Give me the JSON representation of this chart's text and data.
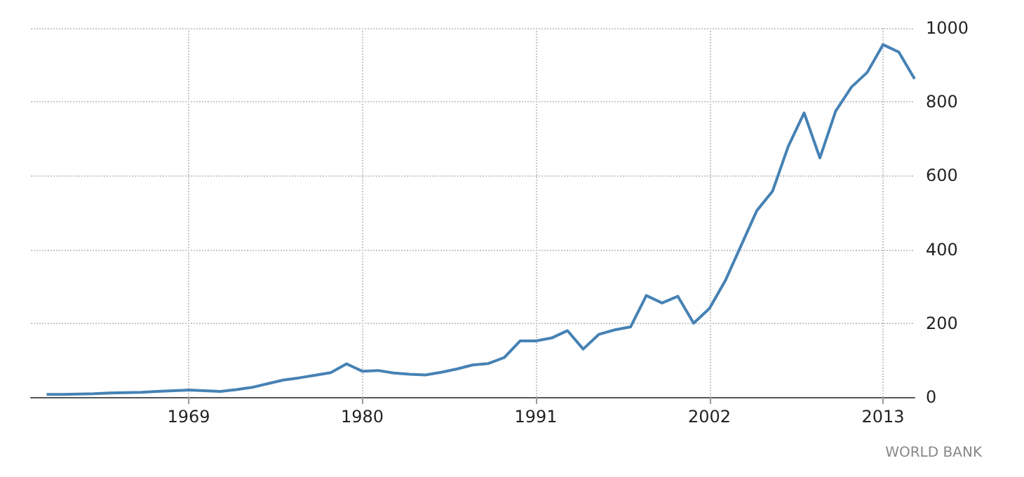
{
  "chart_data": {
    "type": "line",
    "x": [
      1960,
      1961,
      1962,
      1963,
      1964,
      1965,
      1966,
      1967,
      1968,
      1969,
      1970,
      1971,
      1972,
      1973,
      1974,
      1975,
      1976,
      1977,
      1978,
      1979,
      1980,
      1981,
      1982,
      1983,
      1984,
      1985,
      1986,
      1987,
      1988,
      1989,
      1990,
      1991,
      1992,
      1993,
      1994,
      1995,
      1996,
      1997,
      1998,
      1999,
      2000,
      2001,
      2002,
      2003,
      2004,
      2005,
      2006,
      2007,
      2008,
      2009,
      2010,
      2011,
      2012,
      2013,
      2014,
      2015
    ],
    "series": [
      {
        "color": "#4682b4",
        "values": [
          7,
          7,
          8,
          9,
          11,
          12,
          13,
          15,
          17,
          19,
          17,
          15,
          20,
          26,
          36,
          46,
          52,
          59,
          66,
          90,
          70,
          72,
          65,
          62,
          60,
          67,
          76,
          87,
          91,
          107,
          152,
          152,
          160,
          180,
          130,
          170,
          182,
          190,
          275,
          255,
          273,
          200,
          240,
          315,
          410,
          505,
          558,
          680,
          770,
          648,
          775,
          840,
          880,
          955,
          935,
          862
        ]
      }
    ],
    "xlim": [
      1959,
      2015
    ],
    "xticks": [
      1969,
      1980,
      1991,
      2002,
      2013
    ],
    "ylim": [
      0,
      1000
    ],
    "yticks": [
      0,
      200,
      400,
      600,
      800,
      1000
    ],
    "grid": true,
    "marker": "none",
    "line_style": "solid",
    "annotations": [
      "WORLD BANK"
    ]
  }
}
